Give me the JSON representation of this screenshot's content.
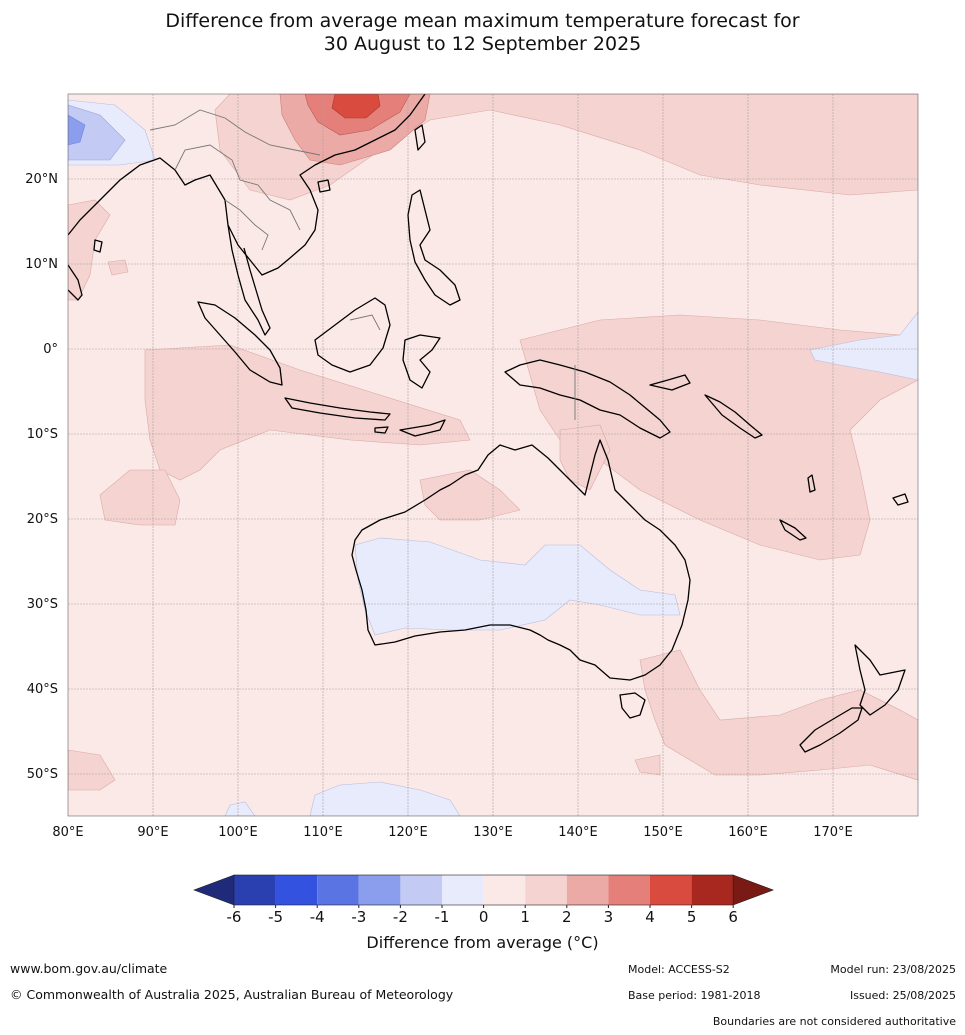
{
  "title": {
    "line1": "Difference from average mean maximum temperature forecast for",
    "line2": "30 August to 12 September 2025"
  },
  "map": {
    "lat_labels": [
      "20°N",
      "10°N",
      "0°",
      "10°S",
      "20°S",
      "30°S",
      "40°S",
      "50°S"
    ],
    "lon_labels": [
      "80°E",
      "90°E",
      "100°E",
      "110°E",
      "120°E",
      "130°E",
      "140°E",
      "150°E",
      "160°E",
      "170°E"
    ],
    "background_color": "#fbe9e7"
  },
  "colorbar": {
    "ticks": [
      "-6",
      "-5",
      "-4",
      "-3",
      "-2",
      "-1",
      "0",
      "1",
      "2",
      "3",
      "4",
      "5",
      "6"
    ],
    "colors": [
      "#1f2a7a",
      "#2a3fb0",
      "#3352e0",
      "#5b74e3",
      "#8b9ded",
      "#c3caf4",
      "#e8ebfb",
      "#fbe9e7",
      "#f4d3d0",
      "#ebaaa6",
      "#e57f79",
      "#d94b3f",
      "#a8281f",
      "#7a1a14"
    ],
    "label": "Difference from average (°C)"
  },
  "footer": {
    "website": "www.bom.gov.au/climate",
    "copyright": "© Commonwealth of Australia 2025, Australian Bureau of Meteorology",
    "model": "Model: ACCESS-S2",
    "base_period": "Base period: 1981-2018",
    "model_run": "Model run: 23/08/2025",
    "issued": "Issued: 25/08/2025",
    "disclaimer": "Boundaries are not considered authoritative"
  }
}
